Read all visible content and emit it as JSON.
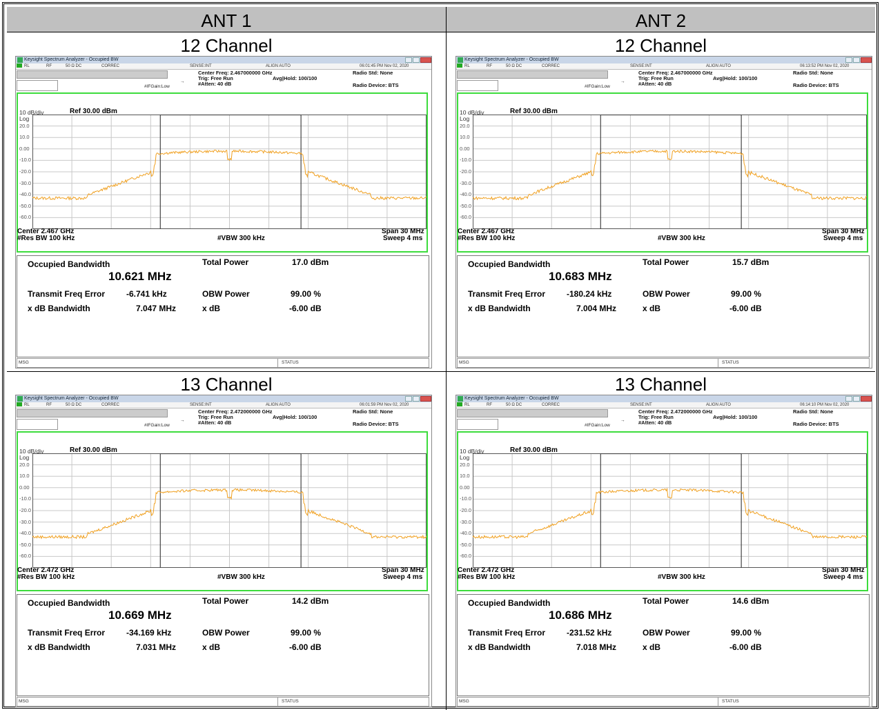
{
  "headers": {
    "ant1": "ANT 1",
    "ant2": "ANT 2"
  },
  "colors": {
    "trace": "#f0a020",
    "graph_border": "#3cdc3c",
    "grid": "#c8c8c8",
    "header_bg": "#c0c0c0"
  },
  "common": {
    "window_title": "Keysight Spectrum Analyzer - Occupied BW",
    "status_rl": "RL",
    "status_rf": "RF",
    "status_ohm": "50 Ω  DC",
    "status_correc": "CORREC",
    "status_sense": "SENSE:INT",
    "status_align": "ALIGN AUTO",
    "trig": "Trig: Free Run",
    "avg_hold": "Avg|Hold: 100/100",
    "atten": "#Atten: 40 dB",
    "ifgain": "#IFGain:Low",
    "radio_std": "Radio Std: None",
    "radio_device": "Radio Device: BTS",
    "scale": "10 dB/div",
    "log": "Log",
    "ref": "Ref 30.00 dBm",
    "yticks": [
      "20.0",
      "10.0",
      "0.00",
      "-10.0",
      "-20.0",
      "-30.0",
      "-40.0",
      "-50.0",
      "-60.0"
    ],
    "res_bw": "#Res BW  100 kHz",
    "vbw": "#VBW  300 kHz",
    "span": "Span 30 MHz",
    "sweep": "Sweep  4 ms",
    "occ_bw_label": "Occupied Bandwidth",
    "total_power_label": "Total Power",
    "tx_freq_err_label": "Transmit Freq Error",
    "obw_power_label": "OBW Power",
    "xdb_bw_label": "x dB Bandwidth",
    "xdb_label": "x dB",
    "obw_power_value": "99.00 %",
    "xdb_value": "-6.00 dB",
    "msg": "MSG",
    "status": "STATUS"
  },
  "panels": [
    {
      "channel": "12 Channel",
      "antenna": "ANT 1",
      "timestamp": "06:01:45 PM Nov 02, 2020",
      "center_freq": "Center Freq: 2.467000000 GHz",
      "center": "Center  2.467 GHz",
      "occ_bw": "10.621 MHz",
      "total_power": "17.0 dBm",
      "tx_freq_error": "-6.741 kHz",
      "xdb_bw": "7.047 MHz"
    },
    {
      "channel": "12 Channel",
      "antenna": "ANT 2",
      "timestamp": "06:13:52 PM Nov 02, 2020",
      "center_freq": "Center Freq: 2.467000000 GHz",
      "center": "Center  2.467 GHz",
      "occ_bw": "10.683 MHz",
      "total_power": "15.7 dBm",
      "tx_freq_error": "-180.24 kHz",
      "xdb_bw": "7.004 MHz"
    },
    {
      "channel": "13 Channel",
      "antenna": "ANT 1",
      "timestamp": "06:01:59 PM Nov 02, 2020",
      "center_freq": "Center Freq: 2.472000000 GHz",
      "center": "Center  2.472 GHz",
      "occ_bw": "10.669 MHz",
      "total_power": "14.2 dBm",
      "tx_freq_error": "-34.169 kHz",
      "xdb_bw": "7.031 MHz"
    },
    {
      "channel": "13 Channel",
      "antenna": "ANT 2",
      "timestamp": "06:14:10 PM Nov 02, 2020",
      "center_freq": "Center Freq: 2.472000000 GHz",
      "center": "Center  2.472 GHz",
      "occ_bw": "10.686 MHz",
      "total_power": "14.6 dBm",
      "tx_freq_error": "-231.52 kHz",
      "xdb_bw": "7.018 MHz"
    }
  ]
}
